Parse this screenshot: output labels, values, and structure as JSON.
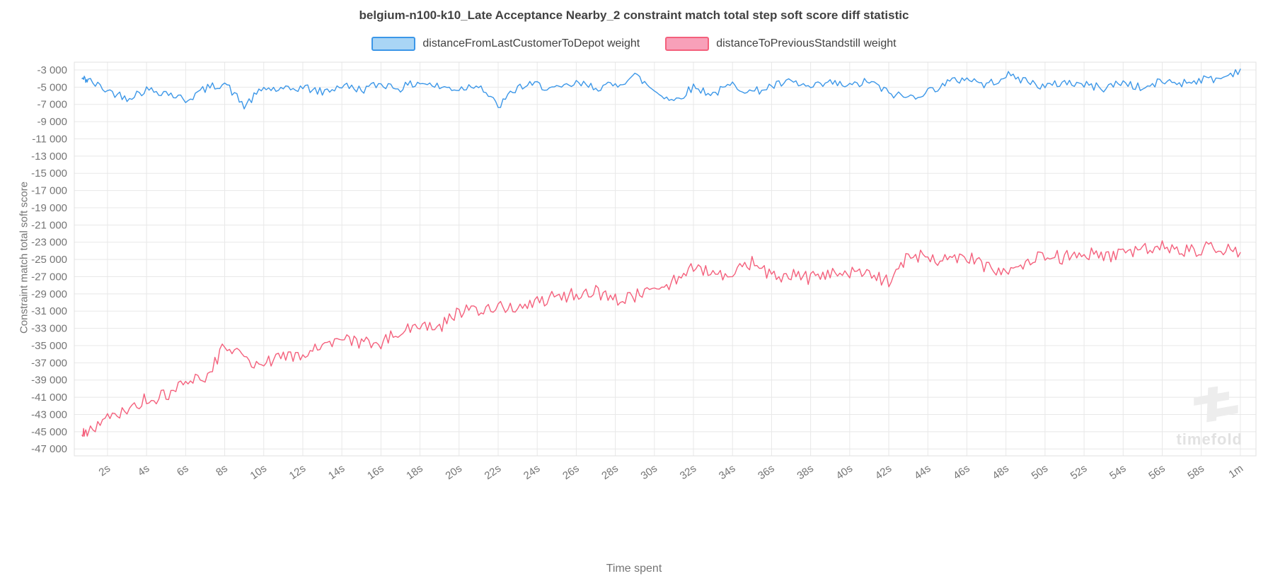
{
  "title": "belgium-n100-k10_Late Acceptance Nearby_2 constraint match total step soft score diff statistic",
  "watermark": "timefold",
  "chart_data": {
    "type": "line",
    "title": "belgium-n100-k10_Late Acceptance Nearby_2 constraint match total step soft score diff statistic",
    "xlabel": "Time spent",
    "ylabel": "Constraint match total soft score",
    "grid": true,
    "legend_position": "top",
    "xlim": [
      0.3,
      60.8
    ],
    "ylim": [
      -47800,
      -2100
    ],
    "seed": 42,
    "x_tick_values": [
      2,
      4,
      6,
      8,
      10,
      12,
      14,
      16,
      18,
      20,
      22,
      24,
      26,
      28,
      30,
      32,
      34,
      36,
      38,
      40,
      42,
      44,
      46,
      48,
      50,
      52,
      54,
      56,
      58,
      60
    ],
    "x_tick_labels": [
      "2s",
      "4s",
      "6s",
      "8s",
      "10s",
      "12s",
      "14s",
      "16s",
      "18s",
      "20s",
      "22s",
      "24s",
      "26s",
      "28s",
      "30s",
      "32s",
      "34s",
      "36s",
      "38s",
      "40s",
      "42s",
      "44s",
      "46s",
      "48s",
      "50s",
      "52s",
      "54s",
      "56s",
      "58s",
      "1m"
    ],
    "y_tick_values": [
      -3000,
      -5000,
      -7000,
      -9000,
      -11000,
      -13000,
      -15000,
      -17000,
      -19000,
      -21000,
      -23000,
      -25000,
      -27000,
      -29000,
      -31000,
      -33000,
      -35000,
      -37000,
      -39000,
      -41000,
      -43000,
      -45000,
      -47000
    ],
    "y_tick_labels": [
      "-3 000",
      "-5 000",
      "-7 000",
      "-9 000",
      "-11 000",
      "-13 000",
      "-15 000",
      "-17 000",
      "-19 000",
      "-21 000",
      "-23 000",
      "-25 000",
      "-27 000",
      "-29 000",
      "-31 000",
      "-33 000",
      "-35 000",
      "-37 000",
      "-39 000",
      "-41 000",
      "-43 000",
      "-45 000",
      "-47 000"
    ],
    "x": [
      0.7,
      1,
      2,
      3,
      4,
      5,
      6,
      7,
      8,
      9,
      10,
      11,
      12,
      13,
      14,
      15,
      16,
      17,
      18,
      19,
      20,
      21,
      22,
      23,
      24,
      25,
      26,
      27,
      28,
      29,
      30,
      31,
      32,
      33,
      34,
      35,
      36,
      37,
      38,
      39,
      40,
      41,
      42,
      43,
      44,
      45,
      46,
      47,
      48,
      49,
      50,
      51,
      52,
      53,
      54,
      55,
      56,
      57,
      58,
      59,
      60
    ],
    "series": [
      {
        "name": "distanceFromLastCustomerToDepot weight",
        "color": "#3c97e8",
        "fill": "#a9d5f5",
        "noise": 500,
        "values": [
          -4000,
          -4200,
          -5400,
          -6200,
          -5300,
          -5600,
          -6500,
          -5200,
          -4500,
          -7200,
          -5100,
          -5400,
          -5000,
          -5600,
          -4800,
          -5300,
          -4600,
          -5100,
          -4400,
          -5000,
          -5200,
          -4600,
          -7300,
          -5000,
          -4700,
          -5300,
          -4600,
          -5000,
          -4800,
          -3600,
          -5400,
          -6600,
          -5000,
          -5800,
          -4700,
          -5600,
          -4900,
          -4400,
          -5100,
          -4500,
          -4900,
          -4300,
          -5700,
          -6200,
          -5500,
          -4500,
          -3900,
          -4800,
          -3600,
          -4200,
          -5000,
          -4400,
          -4700,
          -5100,
          -4400,
          -5200,
          -4300,
          -4500,
          -4100,
          -4000,
          -2900
        ]
      },
      {
        "name": "distanceToPreviousStandstill weight",
        "color": "#f4607c",
        "fill": "#f8a0b9",
        "noise": 800,
        "values": [
          -45400,
          -45200,
          -43500,
          -42500,
          -41200,
          -40800,
          -39500,
          -38500,
          -35200,
          -36500,
          -37200,
          -36400,
          -35800,
          -35200,
          -34300,
          -34800,
          -34600,
          -33500,
          -32400,
          -32800,
          -31200,
          -30800,
          -30400,
          -30900,
          -29800,
          -29400,
          -29000,
          -28800,
          -29600,
          -29200,
          -28900,
          -27400,
          -25600,
          -27000,
          -26200,
          -25400,
          -27000,
          -26800,
          -27200,
          -26400,
          -26600,
          -26800,
          -27600,
          -24400,
          -24800,
          -25200,
          -24600,
          -26000,
          -26800,
          -25400,
          -24400,
          -24800,
          -24300,
          -24600,
          -24400,
          -24000,
          -23400,
          -24200,
          -23800,
          -23600,
          -24200
        ]
      }
    ]
  }
}
